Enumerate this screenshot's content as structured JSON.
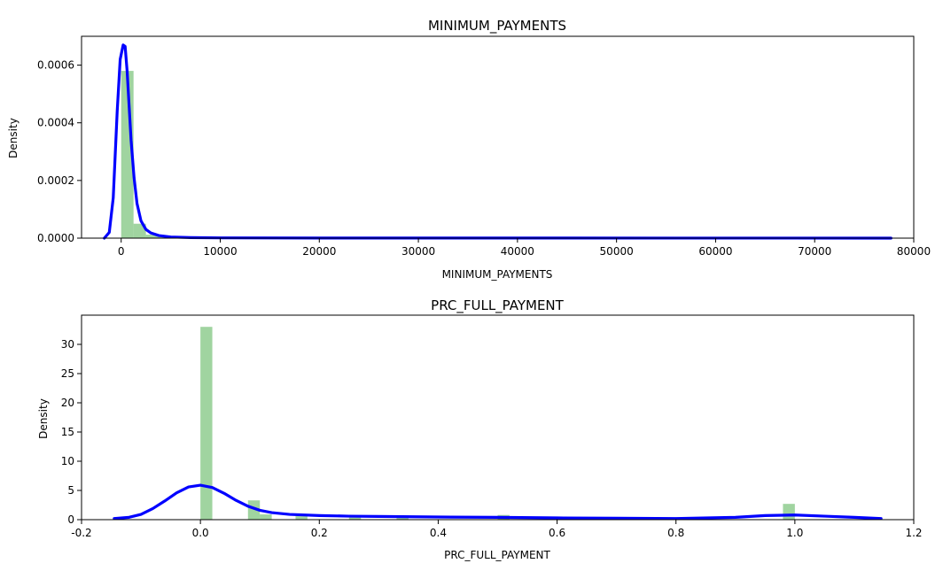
{
  "chart_data": [
    {
      "type": "histogram+kde",
      "title": "MINIMUM_PAYMENTS",
      "xlabel": "MINIMUM_PAYMENTS",
      "ylabel": "Density",
      "xlim": [
        -4000,
        80000
      ],
      "ylim": [
        0,
        0.0007
      ],
      "xticks": [
        0,
        10000,
        20000,
        30000,
        40000,
        50000,
        60000,
        70000,
        80000
      ],
      "xtick_labels": [
        "0",
        "10000",
        "20000",
        "30000",
        "40000",
        "50000",
        "60000",
        "70000",
        "80000"
      ],
      "yticks": [
        0,
        0.0002,
        0.0004,
        0.0006
      ],
      "ytick_labels": [
        "0.0000",
        "0.0002",
        "0.0004",
        "0.0006"
      ],
      "bar_color": "#2ca02c",
      "kde_color": "#0000ff",
      "bars": [
        {
          "x0": 0,
          "x1": 1250,
          "value": 0.00058
        },
        {
          "x0": 1250,
          "x1": 2500,
          "value": 5e-05
        },
        {
          "x0": 2500,
          "x1": 3750,
          "value": 1.2e-05
        },
        {
          "x0": 3750,
          "x1": 5000,
          "value": 5e-06
        }
      ],
      "kde": {
        "x": [
          -1700,
          -1200,
          -800,
          -400,
          -100,
          200,
          400,
          600,
          800,
          1000,
          1300,
          1600,
          2000,
          2500,
          3000,
          3800,
          5000,
          7000,
          10000,
          20000,
          40000,
          60000,
          77700
        ],
        "y": [
          0,
          2e-05,
          0.00014,
          0.00044,
          0.00062,
          0.00067,
          0.000665,
          0.00058,
          0.00046,
          0.00034,
          0.00021,
          0.00012,
          6e-05,
          3e-05,
          1.8e-05,
          9e-06,
          4e-06,
          2e-06,
          1e-06,
          5e-07,
          3e-07,
          2e-07,
          1e-07
        ]
      }
    },
    {
      "type": "histogram+kde",
      "title": "PRC_FULL_PAYMENT",
      "xlabel": "PRC_FULL_PAYMENT",
      "ylabel": "Density",
      "xlim": [
        -0.2,
        1.2
      ],
      "ylim": [
        0,
        35
      ],
      "xticks": [
        -0.2,
        0,
        0.2,
        0.4,
        0.6,
        0.8,
        1.0,
        1.2
      ],
      "xtick_labels": [
        "-0.2",
        "0.0",
        "0.2",
        "0.4",
        "0.6",
        "0.8",
        "1.0",
        "1.2"
      ],
      "yticks": [
        0,
        5,
        10,
        15,
        20,
        25,
        30
      ],
      "ytick_labels": [
        "0",
        "5",
        "10",
        "15",
        "20",
        "25",
        "30"
      ],
      "bar_color": "#2ca02c",
      "kde_color": "#0000ff",
      "bars": [
        {
          "x0": 0.0,
          "x1": 0.02,
          "value": 33
        },
        {
          "x0": 0.08,
          "x1": 0.1,
          "value": 3.3
        },
        {
          "x0": 0.1,
          "x1": 0.12,
          "value": 0.9
        },
        {
          "x0": 0.16,
          "x1": 0.18,
          "value": 0.6
        },
        {
          "x0": 0.25,
          "x1": 0.27,
          "value": 0.5
        },
        {
          "x0": 0.33,
          "x1": 0.35,
          "value": 0.7
        },
        {
          "x0": 0.5,
          "x1": 0.52,
          "value": 0.8
        },
        {
          "x0": 0.66,
          "x1": 0.68,
          "value": 0.4
        },
        {
          "x0": 0.75,
          "x1": 0.77,
          "value": 0.3
        },
        {
          "x0": 0.98,
          "x1": 1.0,
          "value": 2.7
        }
      ],
      "kde": {
        "x": [
          -0.145,
          -0.12,
          -0.1,
          -0.08,
          -0.06,
          -0.04,
          -0.02,
          0.0,
          0.02,
          0.04,
          0.06,
          0.08,
          0.1,
          0.12,
          0.15,
          0.2,
          0.25,
          0.3,
          0.4,
          0.5,
          0.6,
          0.7,
          0.8,
          0.9,
          0.95,
          1.0,
          1.05,
          1.1,
          1.145
        ],
        "y": [
          0.2,
          0.4,
          0.9,
          1.9,
          3.2,
          4.6,
          5.6,
          5.9,
          5.5,
          4.5,
          3.3,
          2.3,
          1.6,
          1.2,
          0.9,
          0.7,
          0.6,
          0.55,
          0.45,
          0.4,
          0.3,
          0.25,
          0.2,
          0.4,
          0.7,
          0.8,
          0.6,
          0.4,
          0.2
        ]
      }
    }
  ]
}
